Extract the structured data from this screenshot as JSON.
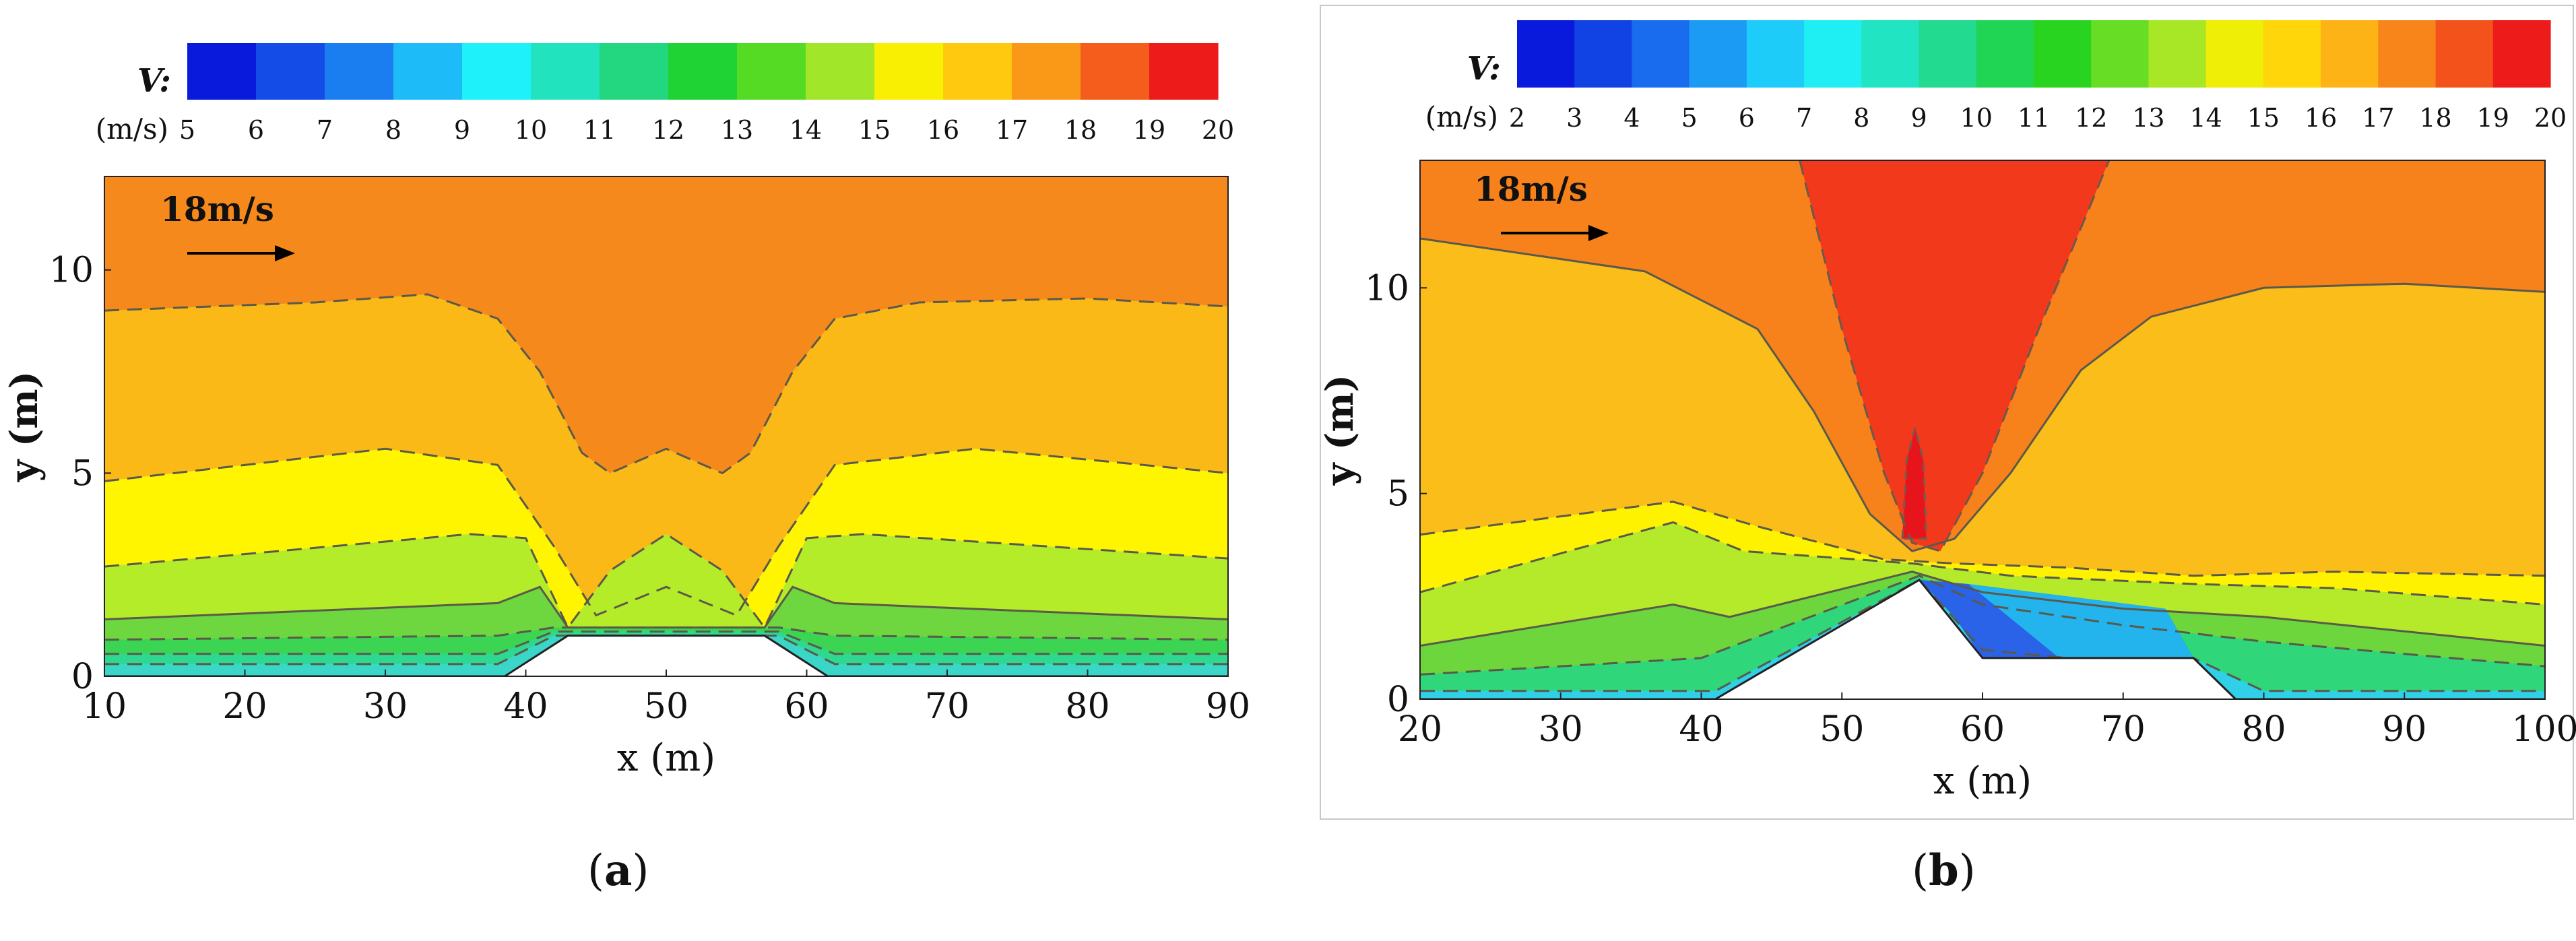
{
  "chart_data": [
    {
      "type": "contour",
      "panel": "a",
      "panel_label": "a",
      "colorbar": {
        "title": "V:",
        "unit": "(m/s)",
        "ticks": [
          "5",
          "6",
          "7",
          "8",
          "9",
          "10",
          "11",
          "12",
          "13",
          "14",
          "15",
          "16",
          "17",
          "18",
          "19",
          "20"
        ],
        "range": [
          4.5,
          20.5
        ]
      },
      "arrow_label": "18m/s",
      "xlabel": "x (m)",
      "ylabel": "y (m)",
      "xlim": [
        10,
        90
      ],
      "ylim": [
        0,
        12.3
      ],
      "xticks": [
        "10",
        "20",
        "30",
        "40",
        "50",
        "60",
        "70",
        "80",
        "90"
      ],
      "yticks": [
        "0",
        "5",
        "10"
      ],
      "bands": [
        {
          "level": 5.5,
          "color": "#3ad6c8",
          "profile": [
            [
              10,
              0.3
            ],
            [
              38,
              0.3
            ],
            [
              42,
              1.0
            ],
            [
              58,
              1.0
            ],
            [
              62,
              0.3
            ],
            [
              90,
              0.3
            ]
          ]
        },
        {
          "level": 8.5,
          "color": "#2fd890",
          "profile": [
            [
              10,
              0.55
            ],
            [
              38,
              0.55
            ],
            [
              42,
              1.1
            ],
            [
              58,
              1.1
            ],
            [
              62,
              0.55
            ],
            [
              90,
              0.55
            ]
          ]
        },
        {
          "level": 11.5,
          "color": "#3cd553",
          "profile": [
            [
              10,
              0.9
            ],
            [
              38,
              1.0
            ],
            [
              42,
              1.2
            ],
            [
              58,
              1.2
            ],
            [
              62,
              1.0
            ],
            [
              90,
              0.9
            ]
          ]
        },
        {
          "level": 13,
          "color": "#6ed63e",
          "profile": [
            [
              10,
              1.4
            ],
            [
              38,
              1.8
            ],
            [
              41,
              2.2
            ],
            [
              43,
              1.2
            ],
            [
              57,
              1.2
            ],
            [
              59,
              2.2
            ],
            [
              62,
              1.8
            ],
            [
              90,
              1.4
            ]
          ]
        },
        {
          "level": 15,
          "color": "#b5ec2a",
          "profile": [
            [
              10,
              2.7
            ],
            [
              36,
              3.5
            ],
            [
              40,
              3.4
            ],
            [
              43,
              1.2
            ],
            [
              46,
              2.6
            ],
            [
              50,
              3.5
            ],
            [
              54,
              2.6
            ],
            [
              57,
              1.2
            ],
            [
              60,
              3.4
            ],
            [
              64,
              3.5
            ],
            [
              90,
              2.9
            ]
          ]
        },
        {
          "level": 16.5,
          "color": "#fff500",
          "profile": [
            [
              10,
              4.8
            ],
            [
              30,
              5.6
            ],
            [
              38,
              5.2
            ],
            [
              42,
              3.2
            ],
            [
              45,
              1.5
            ],
            [
              50,
              2.2
            ],
            [
              55,
              1.5
            ],
            [
              58,
              3.2
            ],
            [
              62,
              5.2
            ],
            [
              72,
              5.6
            ],
            [
              90,
              5.0
            ]
          ]
        },
        {
          "level": 17.5,
          "color": "#fbb918",
          "profile": [
            [
              10,
              9.0
            ],
            [
              25,
              9.2
            ],
            [
              33,
              9.4
            ],
            [
              38,
              8.8
            ],
            [
              41,
              7.5
            ],
            [
              44,
              5.5
            ],
            [
              46,
              5.0
            ],
            [
              50,
              5.6
            ],
            [
              54,
              5.0
            ],
            [
              56,
              5.5
            ],
            [
              59,
              7.5
            ],
            [
              62,
              8.8
            ],
            [
              68,
              9.2
            ],
            [
              80,
              9.3
            ],
            [
              90,
              9.1
            ]
          ]
        },
        {
          "level": 18.5,
          "color": "#f6891b",
          "profile": [
            [
              10,
              12.3
            ],
            [
              90,
              12.3
            ]
          ]
        }
      ],
      "terrain": [
        [
          10,
          0
        ],
        [
          38.5,
          0
        ],
        [
          43,
          1.0
        ],
        [
          57,
          1.0
        ],
        [
          61.5,
          0
        ],
        [
          90,
          0
        ]
      ]
    },
    {
      "type": "contour",
      "panel": "b",
      "panel_label": "b",
      "colorbar": {
        "title": "V:",
        "unit": "(m/s)",
        "ticks": [
          "2",
          "3",
          "4",
          "5",
          "6",
          "7",
          "8",
          "9",
          "10",
          "11",
          "12",
          "13",
          "14",
          "15",
          "16",
          "17",
          "18",
          "19",
          "20"
        ],
        "range": [
          1.5,
          20.5
        ]
      },
      "arrow_label": "18m/s",
      "xlabel": "x (m)",
      "ylabel": "y (m)",
      "xlim": [
        20,
        100
      ],
      "ylim": [
        0,
        13.1
      ],
      "xticks": [
        "20",
        "30",
        "40",
        "50",
        "60",
        "70",
        "80",
        "90",
        "100"
      ],
      "yticks": [
        "0",
        "5",
        "10"
      ],
      "bands": [
        {
          "level": 5,
          "color": "#2fd0e8",
          "profile": [
            [
              20,
              0.2
            ],
            [
              41,
              0.2
            ],
            [
              55.5,
              2.9
            ],
            [
              60,
              1.2
            ],
            [
              66,
              1.0
            ],
            [
              75,
              1.0
            ],
            [
              80,
              0.2
            ],
            [
              100,
              0.2
            ]
          ]
        },
        {
          "level": 10,
          "color": "#2fd67a",
          "profile": [
            [
              20,
              0.6
            ],
            [
              40,
              1.0
            ],
            [
              55.5,
              3.0
            ],
            [
              60,
              2.3
            ],
            [
              70,
              1.8
            ],
            [
              80,
              1.4
            ],
            [
              100,
              0.8
            ]
          ]
        },
        {
          "level": 13,
          "color": "#6cd63c",
          "profile": [
            [
              20,
              1.3
            ],
            [
              38,
              2.3
            ],
            [
              42,
              2.0
            ],
            [
              55,
              3.1
            ],
            [
              60,
              2.6
            ],
            [
              70,
              2.2
            ],
            [
              80,
              2.0
            ],
            [
              100,
              1.3
            ]
          ]
        },
        {
          "level": 15,
          "color": "#b4ea2a",
          "profile": [
            [
              20,
              2.6
            ],
            [
              38,
              4.3
            ],
            [
              43,
              3.6
            ],
            [
              55,
              3.3
            ],
            [
              62,
              3.0
            ],
            [
              75,
              2.8
            ],
            [
              85,
              2.7
            ],
            [
              100,
              2.3
            ]
          ]
        },
        {
          "level": 16.5,
          "color": "#fff200",
          "profile": [
            [
              20,
              4.0
            ],
            [
              38,
              4.8
            ],
            [
              44,
              4.2
            ],
            [
              53,
              3.4
            ],
            [
              58,
              3.3
            ],
            [
              66,
              3.2
            ],
            [
              75,
              3.0
            ],
            [
              85,
              3.1
            ],
            [
              100,
              3.0
            ]
          ]
        },
        {
          "level": 17.5,
          "color": "#fbbd1a",
          "profile": [
            [
              20,
              11.2
            ],
            [
              36,
              10.4
            ],
            [
              44,
              9.0
            ],
            [
              48,
              7.0
            ],
            [
              52,
              4.5
            ],
            [
              55,
              3.6
            ],
            [
              58,
              3.9
            ],
            [
              62,
              5.5
            ],
            [
              67,
              8.0
            ],
            [
              72,
              9.3
            ],
            [
              80,
              10.0
            ],
            [
              90,
              10.1
            ],
            [
              100,
              9.9
            ]
          ]
        },
        {
          "level": 18.5,
          "color": "#f7821c",
          "profile": [
            [
              20,
              13.1
            ],
            [
              100,
              13.1
            ]
          ]
        }
      ],
      "red_plume": [
        [
          47,
          13.1
        ],
        [
          50,
          9.0
        ],
        [
          53,
          5.5
        ],
        [
          55,
          3.8
        ],
        [
          57,
          3.6
        ],
        [
          60,
          5.5
        ],
        [
          64,
          9.0
        ],
        [
          69,
          13.1
        ]
      ],
      "red_core": [
        [
          54.3,
          3.9
        ],
        [
          54.6,
          5.8
        ],
        [
          55.2,
          6.6
        ],
        [
          55.8,
          5.8
        ],
        [
          56.0,
          3.9
        ]
      ],
      "blue_wake": [
        [
          55.5,
          2.9
        ],
        [
          58,
          2.0
        ],
        [
          60,
          1.0
        ],
        [
          64,
          1.0
        ],
        [
          66,
          0.85
        ],
        [
          68,
          1.0
        ],
        [
          75,
          1.0
        ],
        [
          73,
          2.2
        ],
        [
          66,
          2.5
        ],
        [
          59,
          2.8
        ]
      ],
      "terrain": [
        [
          20,
          0
        ],
        [
          41,
          0
        ],
        [
          55.5,
          2.9
        ],
        [
          60,
          1.0
        ],
        [
          75,
          1.0
        ],
        [
          78,
          0
        ],
        [
          100,
          0
        ]
      ]
    }
  ]
}
